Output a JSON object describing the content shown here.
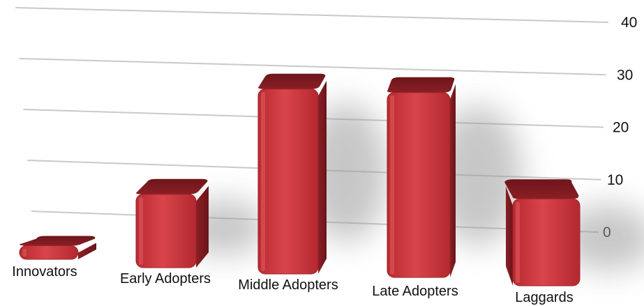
{
  "chart_data": {
    "type": "bar",
    "style": "3d-perspective",
    "categories": [
      "Innovators",
      "Early Adopters",
      "Middle Adopters",
      "Late Adopters",
      "Laggards"
    ],
    "values": [
      2.5,
      13.5,
      34,
      34,
      16
    ],
    "yticks": [
      0,
      10,
      20,
      30,
      40
    ],
    "ylim": [
      0,
      40
    ],
    "grid": true,
    "legend": false,
    "y_axis_position": "right",
    "colors": {
      "bar_front": "#c8323a",
      "bar_front_highlight": "#e0555b",
      "bar_top": "#7a1a1f",
      "bar_side": "#8f2026",
      "grid": "#c9c9c9",
      "shadow": "#9a9a9a"
    }
  }
}
